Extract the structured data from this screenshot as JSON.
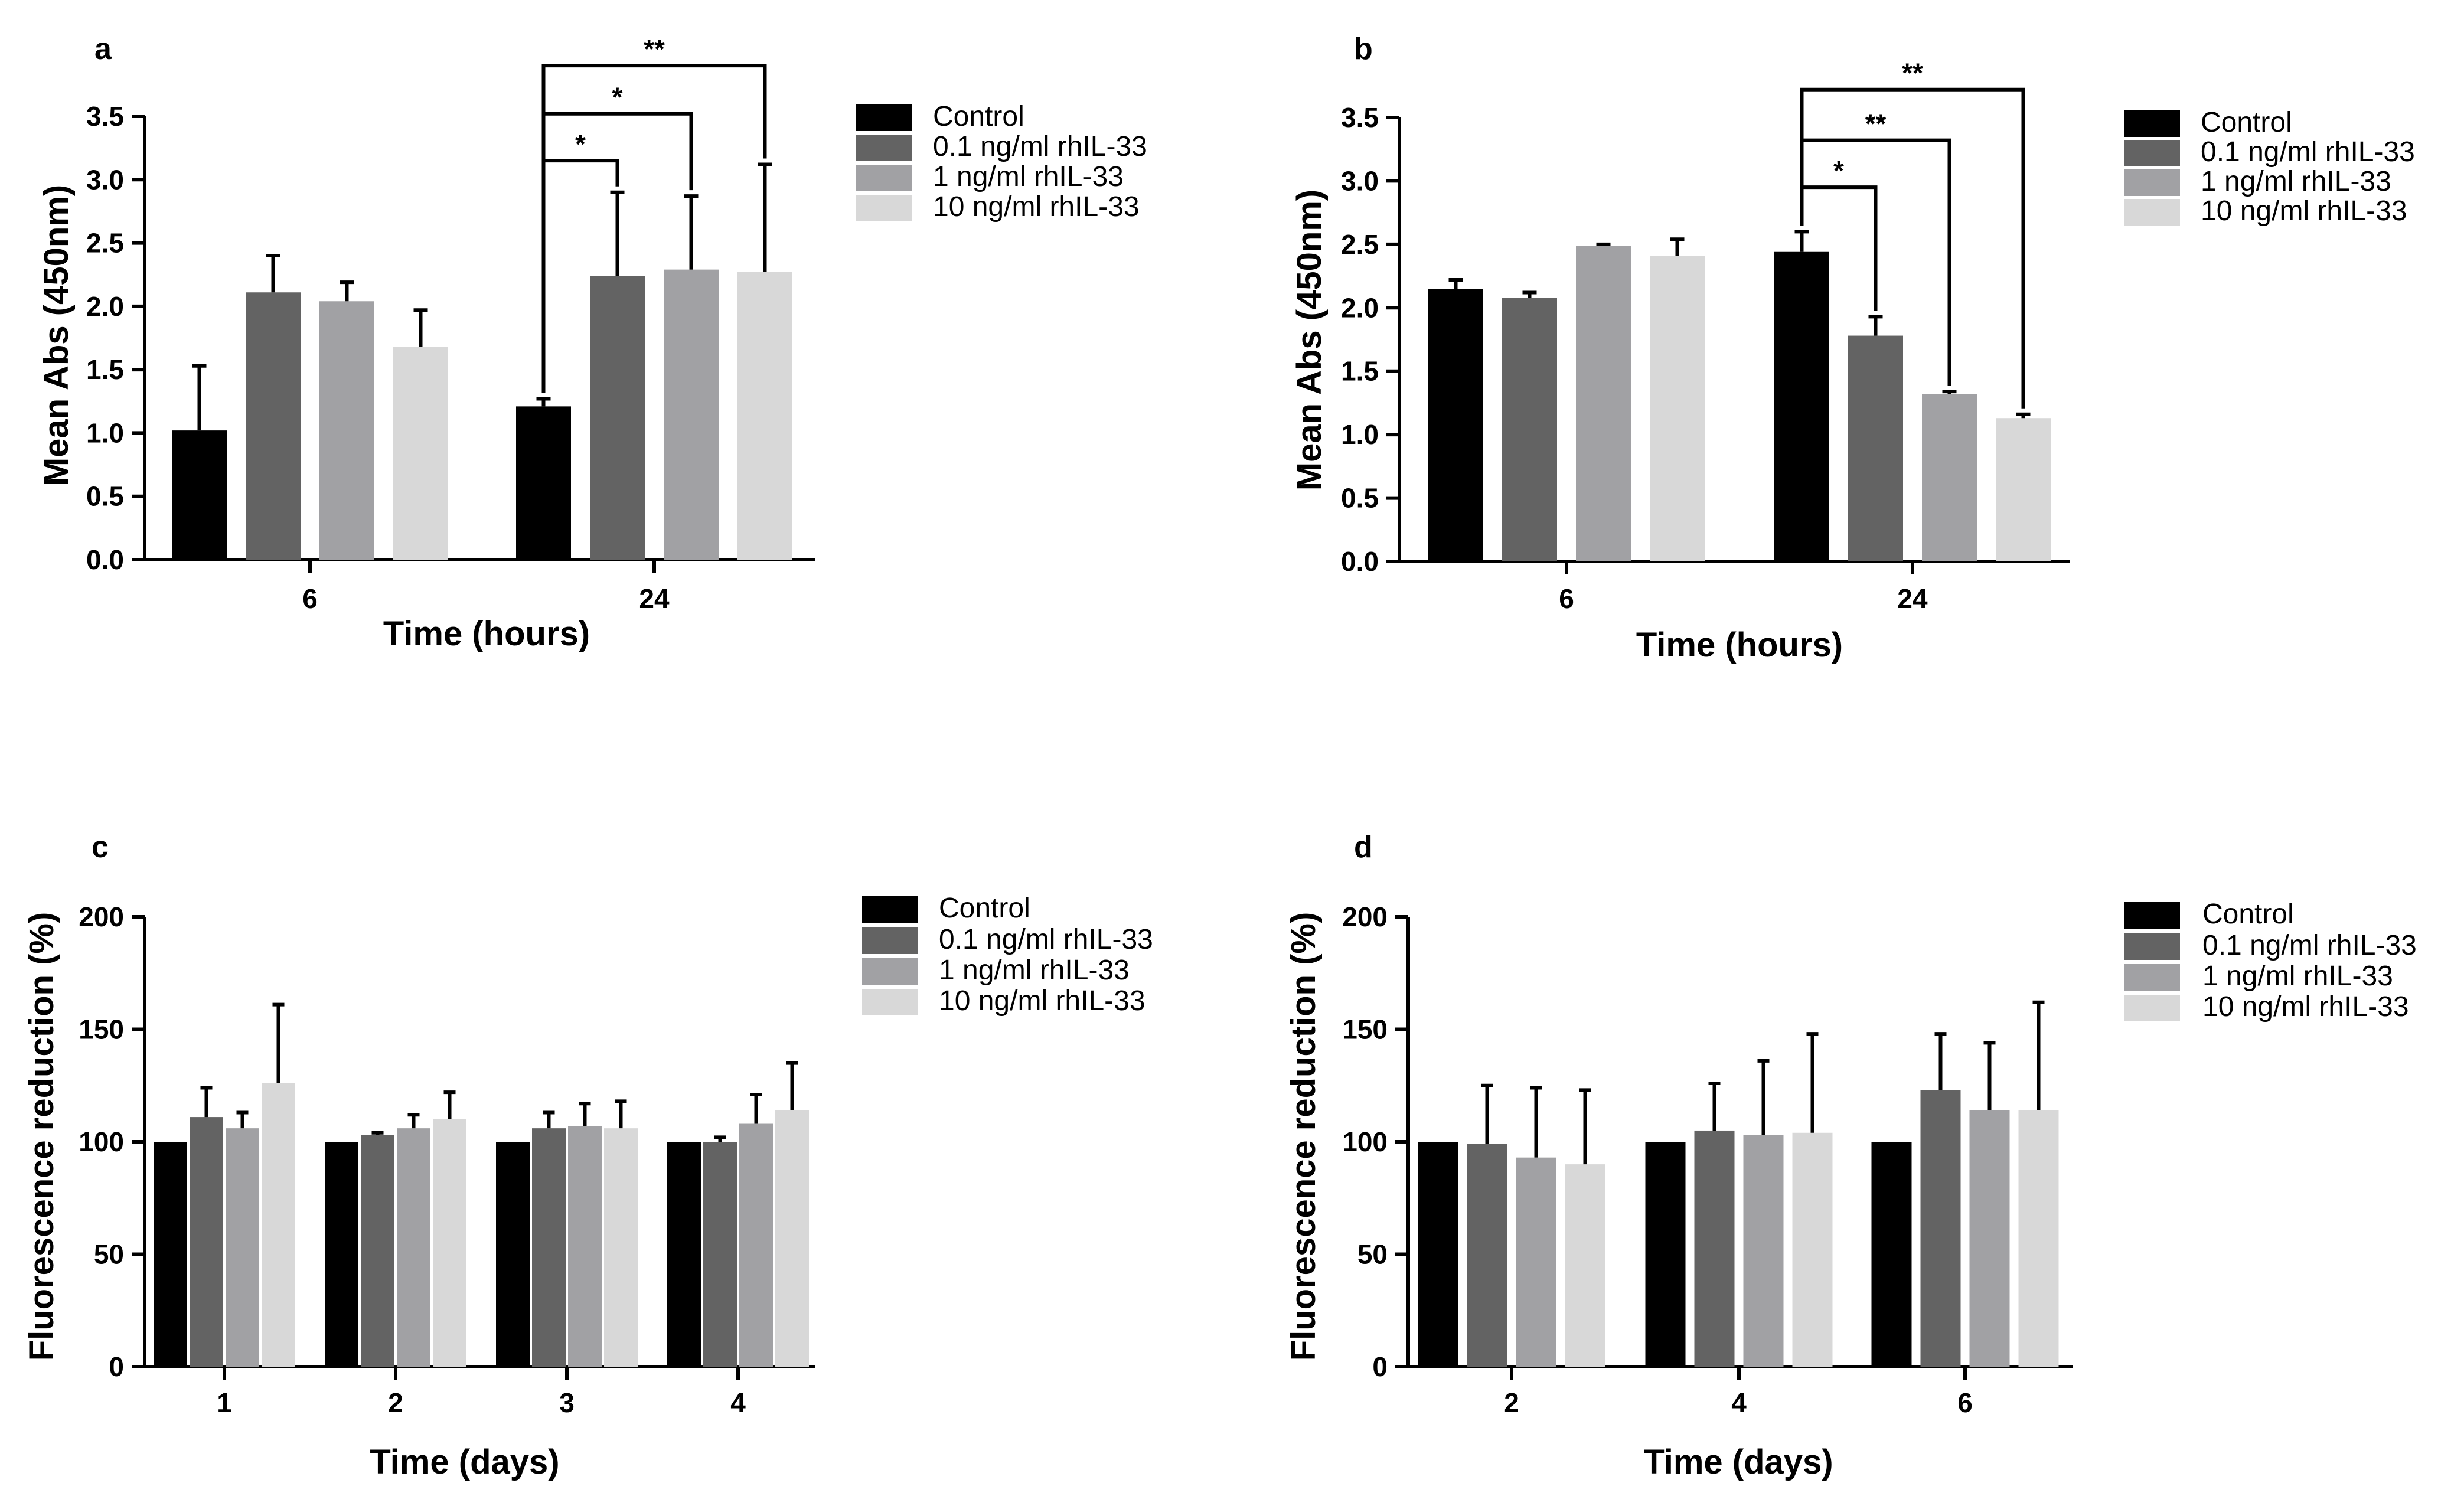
{
  "colors": {
    "series": [
      "#000000",
      "#636363",
      "#a1a1a4",
      "#d8d8d8"
    ],
    "axis": "#000000"
  },
  "chart_data": [
    {
      "panel": "a",
      "type": "bar",
      "ylabel": "Mean Abs (450nm)",
      "xlabel": "Time (hours)",
      "ylim": [
        0,
        3.5
      ],
      "yticks": [
        0,
        0.5,
        1,
        1.5,
        2,
        2.5,
        3,
        3.5
      ],
      "ytick_labels": [
        "0.0",
        "0.5",
        "1.0",
        "1.5",
        "2.0",
        "2.5",
        "3.0",
        "3.5"
      ],
      "categories": [
        "6",
        "24"
      ],
      "legend_position": "top-right",
      "series": [
        {
          "name": "Control",
          "values": [
            1.02,
            1.21
          ],
          "errors": [
            0.51,
            0.06
          ]
        },
        {
          "name": "0.1 ng/ml rhIL-33",
          "values": [
            2.11,
            2.24
          ],
          "errors": [
            0.29,
            0.66
          ]
        },
        {
          "name": "1 ng/ml rhIL-33",
          "values": [
            2.04,
            2.29
          ],
          "errors": [
            0.15,
            0.58
          ]
        },
        {
          "name": "10 ng/ml rhIL-33",
          "values": [
            1.68,
            2.27
          ],
          "errors": [
            0.29,
            0.85
          ]
        }
      ],
      "significance": [
        {
          "label": "*",
          "group": 1,
          "from": 0,
          "to": 1,
          "level": 3.15
        },
        {
          "label": "*",
          "group": 1,
          "from": 0,
          "to": 2,
          "level": 3.52
        },
        {
          "label": "**",
          "group": 1,
          "from": 0,
          "to": 3,
          "level": 3.9
        }
      ]
    },
    {
      "panel": "b",
      "type": "bar",
      "ylabel": "Mean Abs (450nm)",
      "xlabel": "Time (hours)",
      "ylim": [
        0,
        3.5
      ],
      "yticks": [
        0,
        0.5,
        1,
        1.5,
        2,
        2.5,
        3,
        3.5
      ],
      "ytick_labels": [
        "0.0",
        "0.5",
        "1.0",
        "1.5",
        "2.0",
        "2.5",
        "3.0",
        "3.5"
      ],
      "categories": [
        "6",
        "24"
      ],
      "legend_position": "top-right",
      "series": [
        {
          "name": "Control",
          "values": [
            2.15,
            2.44
          ],
          "errors": [
            0.07,
            0.16
          ]
        },
        {
          "name": "0.1 ng/ml rhIL-33",
          "values": [
            2.08,
            1.78
          ],
          "errors": [
            0.04,
            0.15
          ]
        },
        {
          "name": "1 ng/ml rhIL-33",
          "values": [
            2.49,
            1.32
          ],
          "errors": [
            0.01,
            0.02
          ]
        },
        {
          "name": "10 ng/ml rhIL-33",
          "values": [
            2.41,
            1.13
          ],
          "errors": [
            0.13,
            0.03
          ]
        }
      ],
      "significance": [
        {
          "label": "*",
          "group": 1,
          "from": 0,
          "to": 1,
          "level": 2.95
        },
        {
          "label": "**",
          "group": 1,
          "from": 0,
          "to": 2,
          "level": 3.32
        },
        {
          "label": "**",
          "group": 1,
          "from": 0,
          "to": 3,
          "level": 3.72
        }
      ]
    },
    {
      "panel": "c",
      "type": "bar",
      "ylabel": "Fluorescence reduction (%)",
      "xlabel": "Time (days)",
      "ylim": [
        0,
        200
      ],
      "yticks": [
        0,
        50,
        100,
        150,
        200
      ],
      "ytick_labels": [
        "0",
        "50",
        "100",
        "150",
        "200"
      ],
      "categories": [
        "1",
        "2",
        "3",
        "4"
      ],
      "legend_position": "top-right",
      "series": [
        {
          "name": "Control",
          "values": [
            100,
            100,
            100,
            100
          ],
          "errors": [
            0,
            0,
            0,
            0
          ]
        },
        {
          "name": "0.1 ng/ml rhIL-33",
          "values": [
            111,
            103,
            106,
            100
          ],
          "errors": [
            13,
            1,
            7,
            2
          ]
        },
        {
          "name": "1 ng/ml rhIL-33",
          "values": [
            106,
            106,
            107,
            108
          ],
          "errors": [
            7,
            6,
            10,
            13
          ]
        },
        {
          "name": "10 ng/ml rhIL-33",
          "values": [
            126,
            110,
            106,
            114
          ],
          "errors": [
            35,
            12,
            12,
            21
          ]
        }
      ],
      "significance": []
    },
    {
      "panel": "d",
      "type": "bar",
      "ylabel": "Fluorescence reduction (%)",
      "xlabel": "Time (days)",
      "ylim": [
        0,
        200
      ],
      "yticks": [
        0,
        50,
        100,
        150,
        200
      ],
      "ytick_labels": [
        "0",
        "50",
        "100",
        "150",
        "200"
      ],
      "categories": [
        "2",
        "4",
        "6"
      ],
      "legend_position": "top-right",
      "series": [
        {
          "name": "Control",
          "values": [
            100,
            100,
            100
          ],
          "errors": [
            0,
            0,
            0
          ]
        },
        {
          "name": "0.1 ng/ml rhIL-33",
          "values": [
            99,
            105,
            123
          ],
          "errors": [
            26,
            21,
            25
          ]
        },
        {
          "name": "1 ng/ml rhIL-33",
          "values": [
            93,
            103,
            114
          ],
          "errors": [
            31,
            33,
            30
          ]
        },
        {
          "name": "10 ng/ml rhIL-33",
          "values": [
            90,
            104,
            114
          ],
          "errors": [
            33,
            44,
            48
          ]
        }
      ],
      "significance": []
    }
  ]
}
